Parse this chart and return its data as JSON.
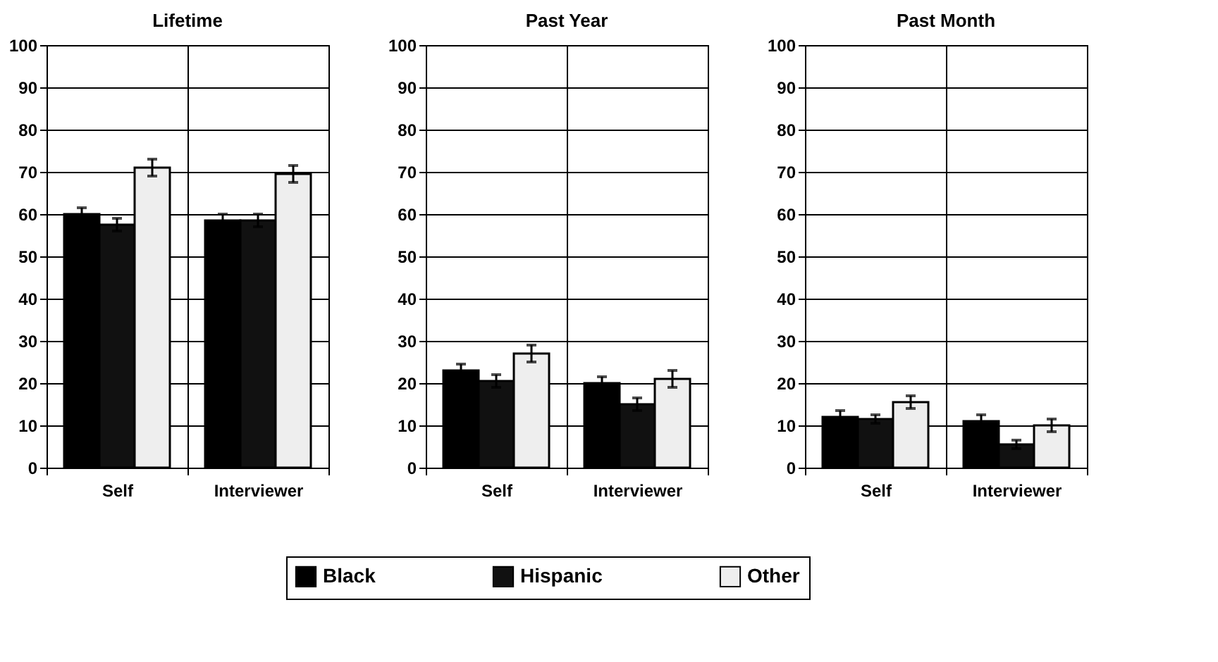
{
  "chart_data": [
    {
      "type": "bar",
      "title": "Lifetime",
      "categories": [
        "Self",
        "Interviewer"
      ],
      "series": [
        {
          "name": "Black",
          "color": "#000000",
          "values": [
            60,
            58.5
          ],
          "errors": [
            1.5,
            1.5
          ]
        },
        {
          "name": "Hispanic",
          "color": "#111111",
          "values": [
            57.5,
            58.5
          ],
          "errors": [
            1.5,
            1.5
          ]
        },
        {
          "name": "Other",
          "color": "#eeeeee",
          "values": [
            71,
            69.5
          ],
          "errors": [
            2,
            2
          ]
        }
      ],
      "ylim": [
        0,
        100
      ],
      "yticks": [
        0,
        10,
        20,
        30,
        40,
        50,
        60,
        70,
        80,
        90,
        100
      ],
      "grid": true,
      "legend": "bottom"
    },
    {
      "type": "bar",
      "title": "Past Year",
      "categories": [
        "Self",
        "Interviewer"
      ],
      "series": [
        {
          "name": "Black",
          "color": "#000000",
          "values": [
            23,
            20
          ],
          "errors": [
            1.5,
            1.5
          ]
        },
        {
          "name": "Hispanic",
          "color": "#111111",
          "values": [
            20.5,
            15
          ],
          "errors": [
            1.5,
            1.5
          ]
        },
        {
          "name": "Other",
          "color": "#eeeeee",
          "values": [
            27,
            21
          ],
          "errors": [
            2,
            2
          ]
        }
      ],
      "ylim": [
        0,
        100
      ],
      "yticks": [
        0,
        10,
        20,
        30,
        40,
        50,
        60,
        70,
        80,
        90,
        100
      ],
      "grid": true,
      "legend": "bottom"
    },
    {
      "type": "bar",
      "title": "Past Month",
      "categories": [
        "Self",
        "Interviewer"
      ],
      "series": [
        {
          "name": "Black",
          "color": "#000000",
          "values": [
            12,
            11
          ],
          "errors": [
            1.5,
            1.5
          ]
        },
        {
          "name": "Hispanic",
          "color": "#111111",
          "values": [
            11.5,
            5.5
          ],
          "errors": [
            1,
            1
          ]
        },
        {
          "name": "Other",
          "color": "#eeeeee",
          "values": [
            15.5,
            10
          ],
          "errors": [
            1.5,
            1.5
          ]
        }
      ],
      "ylim": [
        0,
        100
      ],
      "yticks": [
        0,
        10,
        20,
        30,
        40,
        50,
        60,
        70,
        80,
        90,
        100
      ],
      "grid": true,
      "legend": "bottom"
    }
  ]
}
